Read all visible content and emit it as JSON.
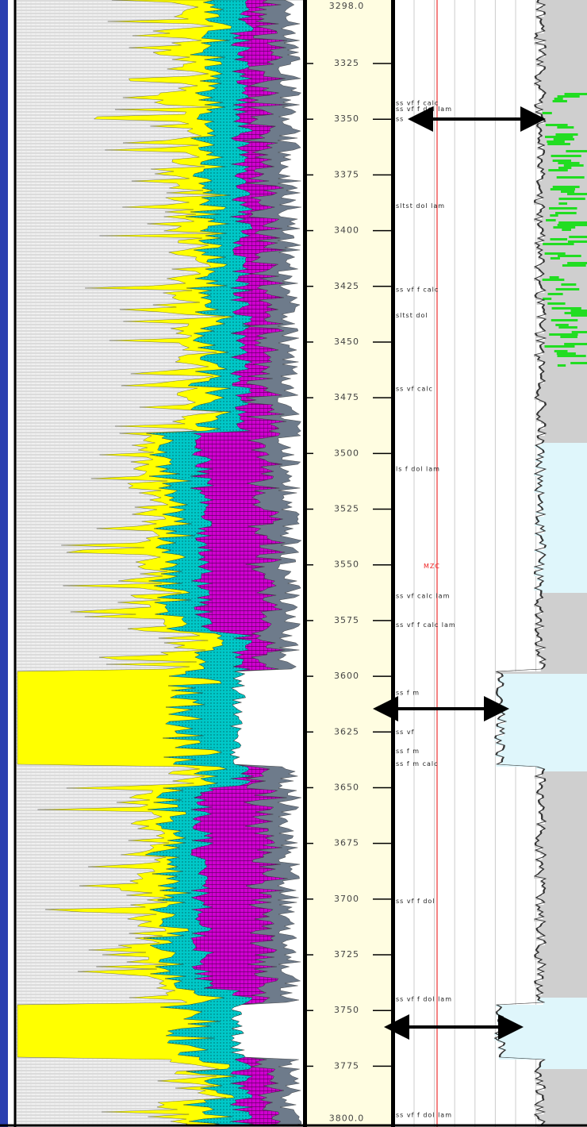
{
  "depth_track": {
    "range": [
      {
        "value": 3298,
        "label": "3298.0"
      },
      {
        "value": 3800,
        "label": "3800.0"
      }
    ],
    "ticks": [
      3325,
      3350,
      3375,
      3400,
      3425,
      3450,
      3475,
      3500,
      3525,
      3550,
      3575,
      3600,
      3625,
      3650,
      3675,
      3700,
      3725,
      3750,
      3775
    ]
  },
  "annotations": [
    {
      "text": "ss vf f calc",
      "depth": 3342.8
    },
    {
      "text": "ss vf f dol lam",
      "depth": 3345.4
    },
    {
      "text": "ss",
      "depth": 3350
    },
    {
      "text": "sltst dol lam",
      "depth": 3389
    },
    {
      "text": "ss vf f calc",
      "depth": 3426.5
    },
    {
      "text": "sltst dol",
      "depth": 3438
    },
    {
      "text": "ss vf calc",
      "depth": 3471
    },
    {
      "text": "ls f dol lam",
      "depth": 3507
    },
    {
      "text": "ss vf calc lam",
      "depth": 3564
    },
    {
      "text": "ss vf f calc lam",
      "depth": 3577
    },
    {
      "text": "ss f m",
      "depth": 3607.5
    },
    {
      "text": "ss vf",
      "depth": 3625
    },
    {
      "text": "ss f m",
      "depth": 3633.6
    },
    {
      "text": "ss f m calc",
      "depth": 3639.3
    },
    {
      "text": "ss vf f dol",
      "depth": 3701
    },
    {
      "text": "ss vf f dol lam",
      "depth": 3745
    },
    {
      "text": "ss vf f dol lam",
      "depth": 3797
    }
  ],
  "marker": {
    "text": "MZC",
    "depth": 3550.7
  }
}
